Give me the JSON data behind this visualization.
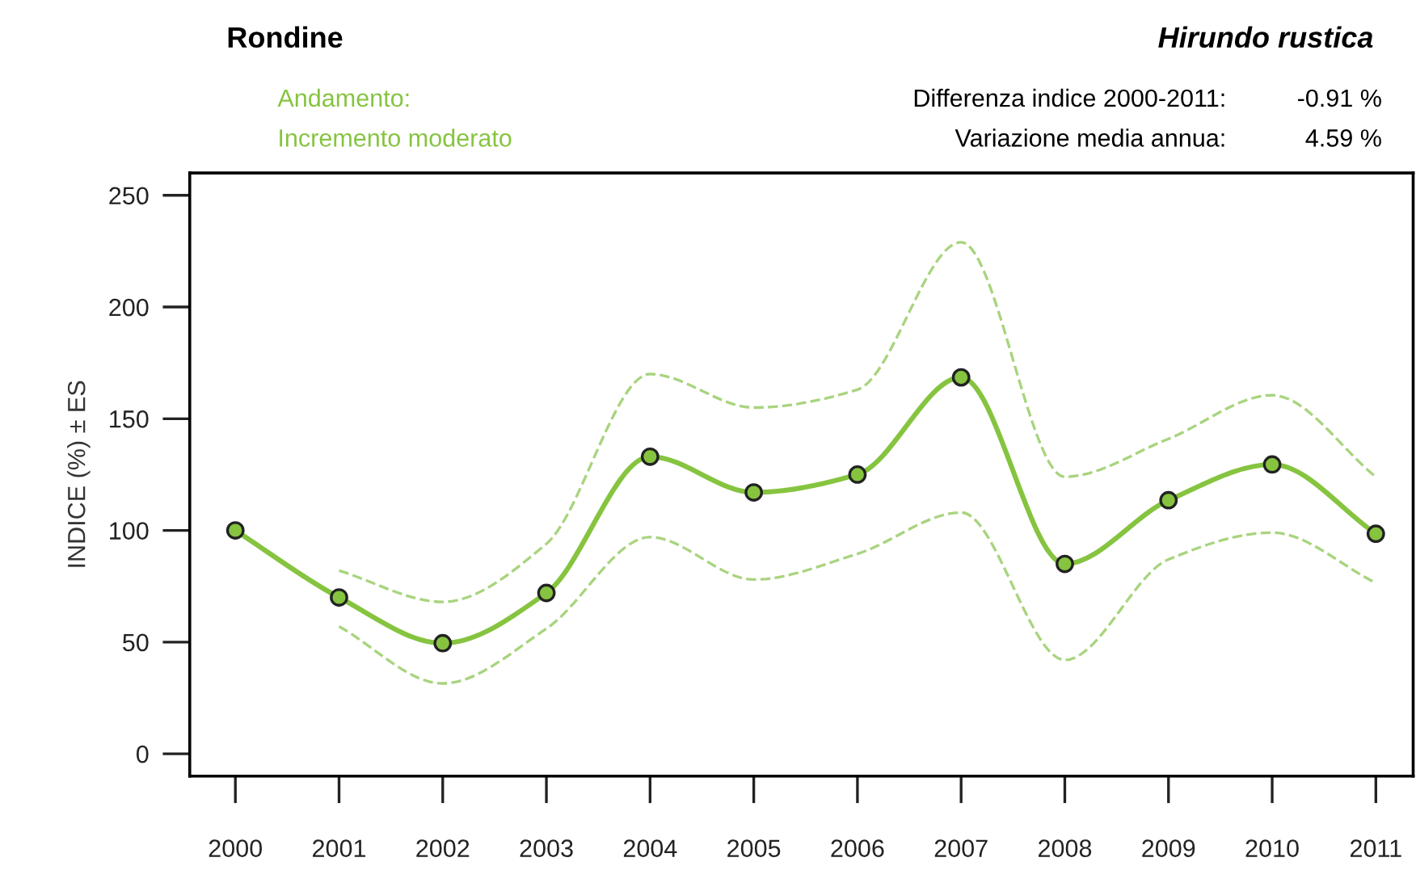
{
  "chart_data": {
    "type": "line",
    "title": "Rondine",
    "subtitle": "Hirundo rustica",
    "ylabel": "INDICE (%) ± ES",
    "annotations": [
      "Andamento:",
      "Incremento moderato",
      "Differenza indice 2000-2011:",
      "-0.91 %",
      "Variazione media annua:",
      "4.59 %"
    ],
    "categories": [
      "2000",
      "2001",
      "2002",
      "2003",
      "2004",
      "2005",
      "2006",
      "2007",
      "2008",
      "2009",
      "2010",
      "2011"
    ],
    "series": [
      {
        "color": "#86c440",
        "marker": "circle",
        "line_style": "solid",
        "values": [
          100,
          70,
          49.5,
          72,
          133,
          117,
          125,
          168.5,
          85,
          113.5,
          129.5,
          98.5
        ]
      },
      {
        "color": "#a8d47e",
        "marker": "none",
        "line_style": "dashed",
        "values": [
          null,
          82,
          68,
          94,
          170,
          155,
          163,
          229,
          124,
          141,
          160.5,
          124
        ]
      },
      {
        "color": "#a8d47e",
        "marker": "none",
        "line_style": "dashed",
        "values": [
          null,
          57,
          31.5,
          56,
          97,
          78,
          89.5,
          108,
          42,
          87,
          99,
          76.5
        ]
      }
    ],
    "ylim": [
      -10,
      260
    ],
    "yticks": [
      0,
      50,
      100,
      150,
      200,
      250
    ],
    "grid": false
  }
}
